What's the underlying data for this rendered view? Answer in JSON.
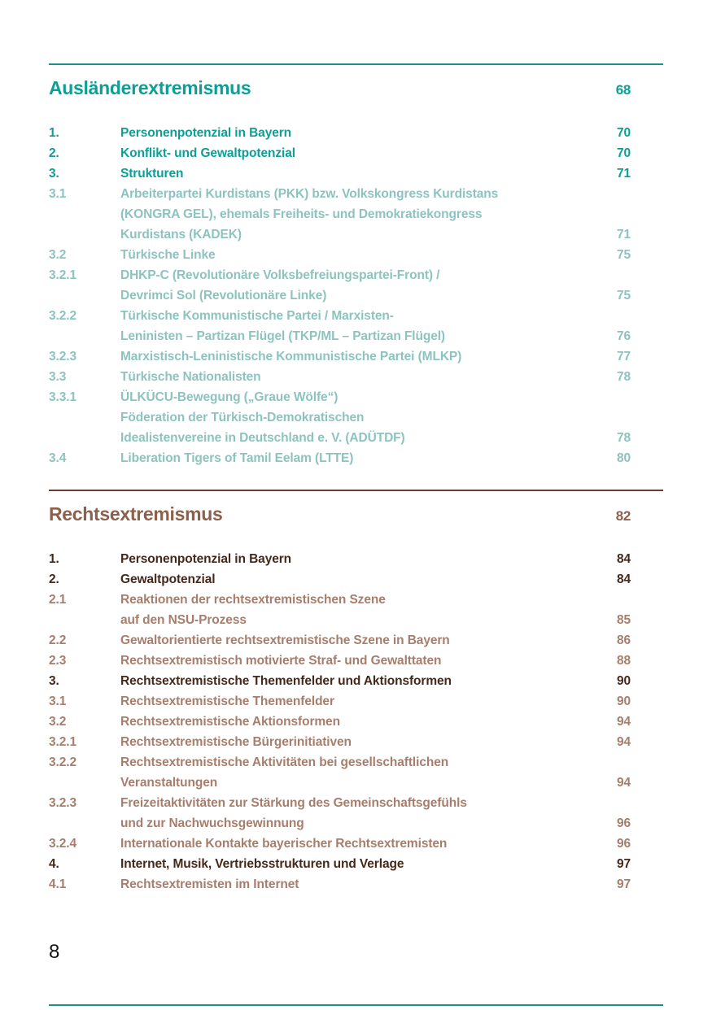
{
  "document": {
    "footer_page_number": "8",
    "colors": {
      "teal_strong": "#0b9f97",
      "teal_light": "#8dc3bf",
      "teal_rule": "#1e8e89",
      "brown_headline": "#8d604b",
      "brown_strong": "#45281a",
      "brown_light": "#a77e6c",
      "brown_rule": "#693f31",
      "footer_text": "#141414"
    }
  },
  "sections": [
    {
      "title": "Ausländerextremismus",
      "page": "68",
      "theme": "teal",
      "entries": [
        {
          "num": "1.",
          "style": "strong",
          "lines": [
            "Personenpotenzial in Bayern"
          ],
          "page": "70"
        },
        {
          "num": "2.",
          "style": "strong",
          "lines": [
            "Konflikt- und Gewaltpotenzial"
          ],
          "page": "70"
        },
        {
          "num": "3.",
          "style": "strong",
          "lines": [
            "Strukturen"
          ],
          "page": "71"
        },
        {
          "num": "3.1",
          "style": "light",
          "lines": [
            "Arbeiterpartei Kurdistans (PKK) bzw. Volkskongress Kurdistans",
            "(KONGRA GEL), ehemals Freiheits- und Demokratiekongress",
            "Kurdistans (KADEK)"
          ],
          "page": "71"
        },
        {
          "num": "3.2",
          "style": "light",
          "lines": [
            "Türkische Linke"
          ],
          "page": "75"
        },
        {
          "num": "3.2.1",
          "style": "light",
          "lines": [
            "DHKP-C (Revolutionäre Volksbefreiungspartei-Front) /",
            "Devrimci Sol (Revolutionäre Linke)"
          ],
          "page": "75"
        },
        {
          "num": "3.2.2",
          "style": "light",
          "lines": [
            "Türkische Kommunistische Partei / Marxisten-",
            "Leninisten – Partizan Flügel (TKP/ML – Partizan Flügel)"
          ],
          "page": "76"
        },
        {
          "num": "3.2.3",
          "style": "light",
          "lines": [
            "Marxistisch-Leninistische Kommunistische Partei (MLKP)"
          ],
          "page": "77"
        },
        {
          "num": "3.3",
          "style": "light",
          "lines": [
            "Türkische Nationalisten"
          ],
          "page": "78"
        },
        {
          "num": "3.3.1",
          "style": "light",
          "lines": [
            "ÜLKÜCU-Bewegung („Graue Wölfe“)",
            "Föderation der Türkisch-Demokratischen",
            "Idealistenvereine in Deutschland e. V. (ADÜTDF)"
          ],
          "page": "78"
        },
        {
          "num": "3.4",
          "style": "light",
          "lines": [
            "Liberation Tigers of Tamil Eelam (LTTE)"
          ],
          "page": "80"
        }
      ]
    },
    {
      "title": "Rechtsextremismus",
      "page": "82",
      "theme": "brown",
      "entries": [
        {
          "num": "1.",
          "style": "strong",
          "lines": [
            "Personenpotenzial in Bayern"
          ],
          "page": "84"
        },
        {
          "num": "2.",
          "style": "strong",
          "lines": [
            "Gewaltpotenzial"
          ],
          "page": "84"
        },
        {
          "num": "2.1",
          "style": "light",
          "lines": [
            "Reaktionen der rechtsextremistischen Szene",
            "auf den NSU-Prozess"
          ],
          "page": "85"
        },
        {
          "num": "2.2",
          "style": "light",
          "lines": [
            "Gewaltorientierte rechtsextremistische Szene in Bayern"
          ],
          "page": "86"
        },
        {
          "num": "2.3",
          "style": "light",
          "lines": [
            "Rechtsextremistisch motivierte Straf- und Gewalttaten"
          ],
          "page": "88"
        },
        {
          "num": "3.",
          "style": "strong",
          "lines": [
            "Rechtsextremistische Themenfelder und Aktionsformen"
          ],
          "page": "90"
        },
        {
          "num": "3.1",
          "style": "light",
          "lines": [
            "Rechtsextremistische Themenfelder"
          ],
          "page": "90"
        },
        {
          "num": "3.2",
          "style": "light",
          "lines": [
            "Rechtsextremistische Aktionsformen"
          ],
          "page": "94"
        },
        {
          "num": "3.2.1",
          "style": "light",
          "lines": [
            "Rechtsextremistische Bürgerinitiativen"
          ],
          "page": "94"
        },
        {
          "num": "3.2.2",
          "style": "light",
          "lines": [
            "Rechtsextremistische Aktivitäten bei gesellschaftlichen",
            "Veranstaltungen"
          ],
          "page": "94"
        },
        {
          "num": "3.2.3",
          "style": "light",
          "lines": [
            "Freizeitaktivitäten zur Stärkung des Gemeinschaftsgefühls",
            "und zur Nachwuchsgewinnung"
          ],
          "page": "96"
        },
        {
          "num": "3.2.4",
          "style": "light",
          "lines": [
            "Internationale Kontakte bayerischer Rechtsextremisten"
          ],
          "page": "96"
        },
        {
          "num": "4.",
          "style": "strong",
          "lines": [
            "Internet, Musik, Vertriebsstrukturen und Verlage"
          ],
          "page": "97"
        },
        {
          "num": "4.1",
          "style": "light",
          "lines": [
            "Rechtsextremisten im Internet"
          ],
          "page": "97"
        }
      ]
    }
  ]
}
